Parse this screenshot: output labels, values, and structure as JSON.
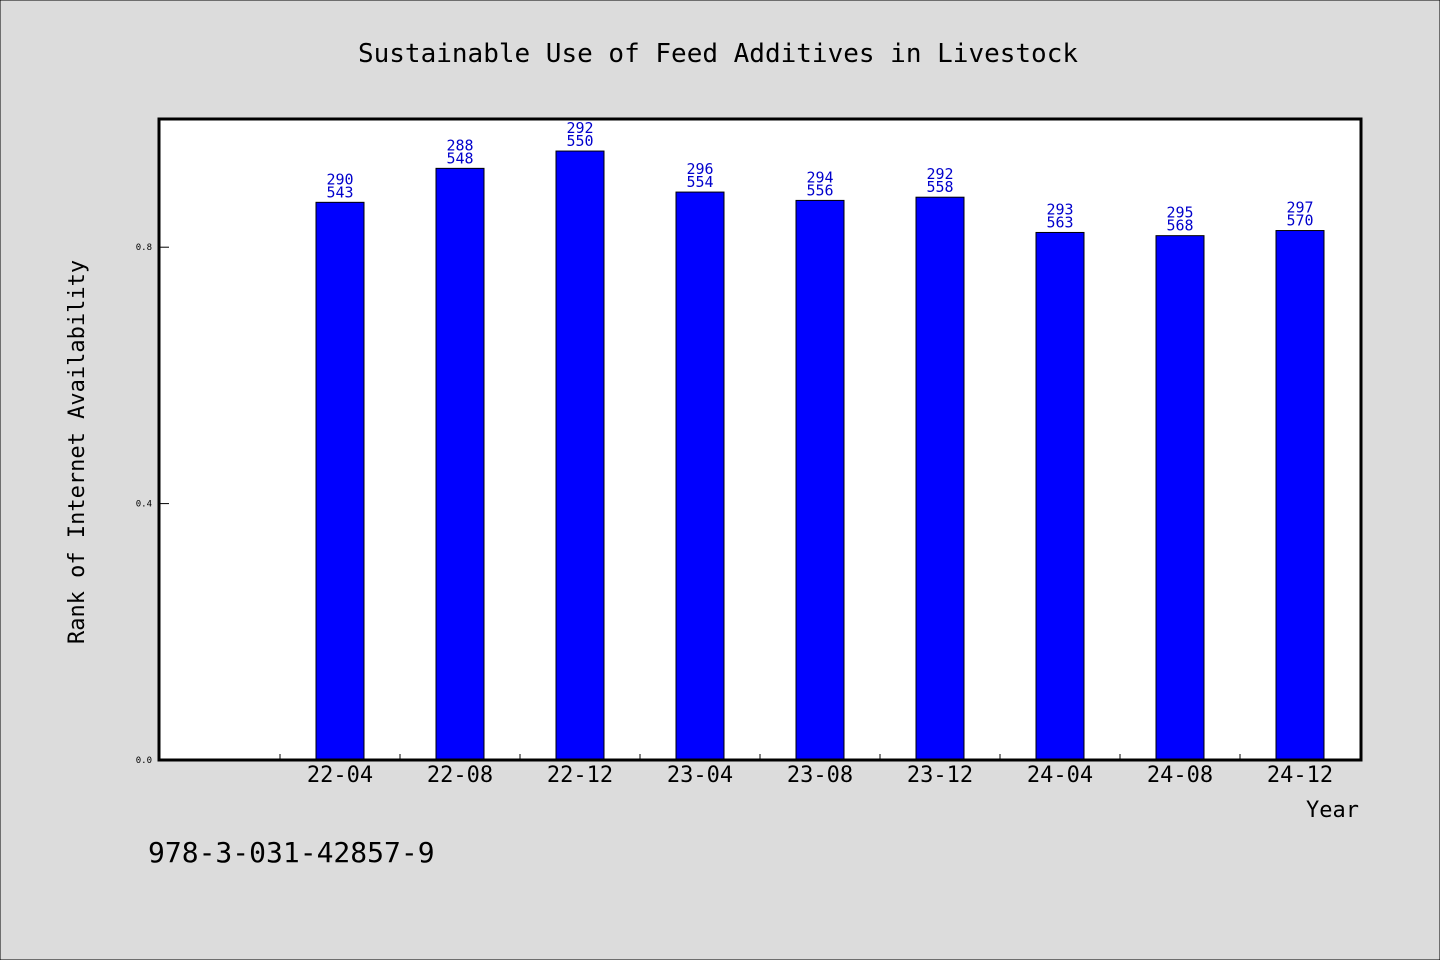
{
  "chart_data": {
    "type": "bar",
    "title": "Sustainable Use of Feed Additives in Livestock",
    "xlabel": "Year",
    "ylabel": "Rank of Internet Availability",
    "categories": [
      "22-04",
      "22-08",
      "22-12",
      "23-04",
      "23-08",
      "23-12",
      "24-04",
      "24-08",
      "24-12"
    ],
    "values": [
      0.87,
      0.923,
      0.95,
      0.886,
      0.873,
      0.878,
      0.823,
      0.818,
      0.826
    ],
    "labels_top": [
      "290",
      "288",
      "292",
      "296",
      "294",
      "292",
      "293",
      "295",
      "297"
    ],
    "labels_bottom": [
      "543",
      "548",
      "550",
      "554",
      "556",
      "558",
      "563",
      "568",
      "570"
    ],
    "yticks": [
      "0.0",
      "0.4",
      "0.8"
    ],
    "ytick_values": [
      0.0,
      0.4,
      0.8
    ],
    "ylim": [
      0,
      1.0
    ],
    "grid": false,
    "bar_color": "#0000ff",
    "label_color": "#0000cc",
    "background": "#dcdcdc",
    "plot_background": "#ffffff"
  },
  "footer": {
    "isbn": "978-3-031-42857-9"
  }
}
